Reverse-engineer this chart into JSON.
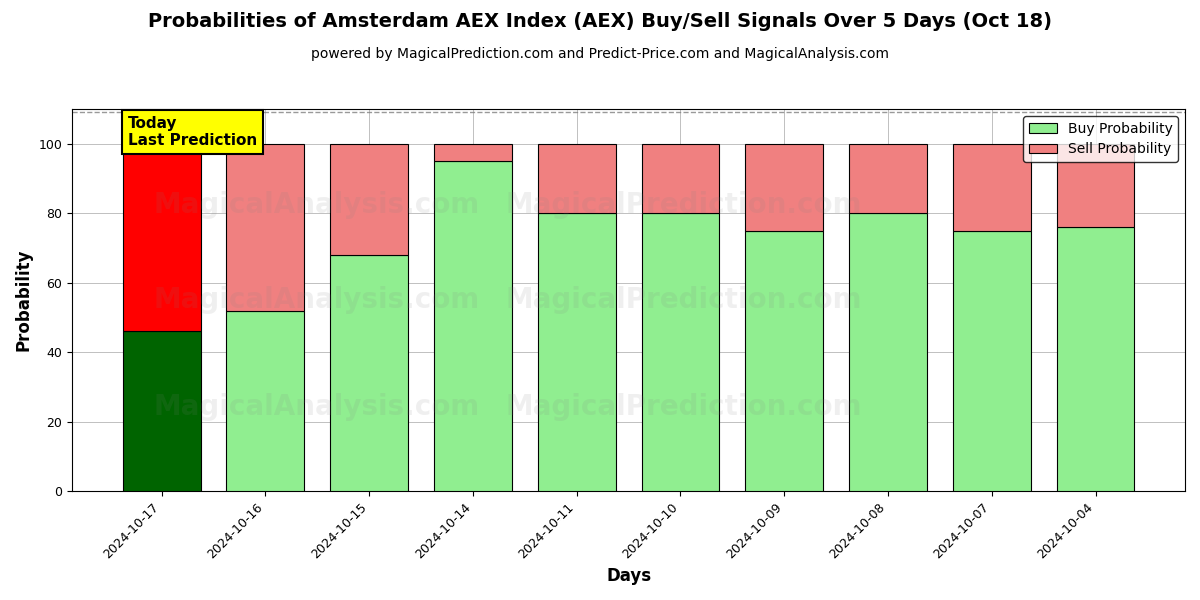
{
  "title": "Probabilities of Amsterdam AEX Index (AEX) Buy/Sell Signals Over 5 Days (Oct 18)",
  "subtitle": "powered by MagicalPrediction.com and Predict-Price.com and MagicalAnalysis.com",
  "xlabel": "Days",
  "ylabel": "Probability",
  "categories": [
    "2024-10-17",
    "2024-10-16",
    "2024-10-15",
    "2024-10-14",
    "2024-10-11",
    "2024-10-10",
    "2024-10-09",
    "2024-10-08",
    "2024-10-07",
    "2024-10-04"
  ],
  "buy_values": [
    46,
    52,
    68,
    95,
    80,
    80,
    75,
    80,
    75,
    76
  ],
  "sell_values": [
    54,
    48,
    32,
    5,
    20,
    20,
    25,
    20,
    25,
    24
  ],
  "buy_colors_today": "#006400",
  "sell_colors_today": "#FF0000",
  "buy_color": "#90EE90",
  "sell_color": "#F08080",
  "bar_edge_color": "black",
  "bar_edge_width": 0.8,
  "ylim": [
    0,
    110
  ],
  "yticks": [
    0,
    20,
    40,
    60,
    80,
    100
  ],
  "dashed_line_y": 109,
  "background_color": "white",
  "grid_color": "gray",
  "grid_alpha": 0.5,
  "title_fontsize": 14,
  "subtitle_fontsize": 10,
  "axis_label_fontsize": 12,
  "tick_fontsize": 9,
  "legend_fontsize": 10,
  "annotation_text": "Today\nLast Prediction",
  "annotation_fontsize": 11,
  "watermark_alpha": 0.12,
  "bar_width": 0.75
}
